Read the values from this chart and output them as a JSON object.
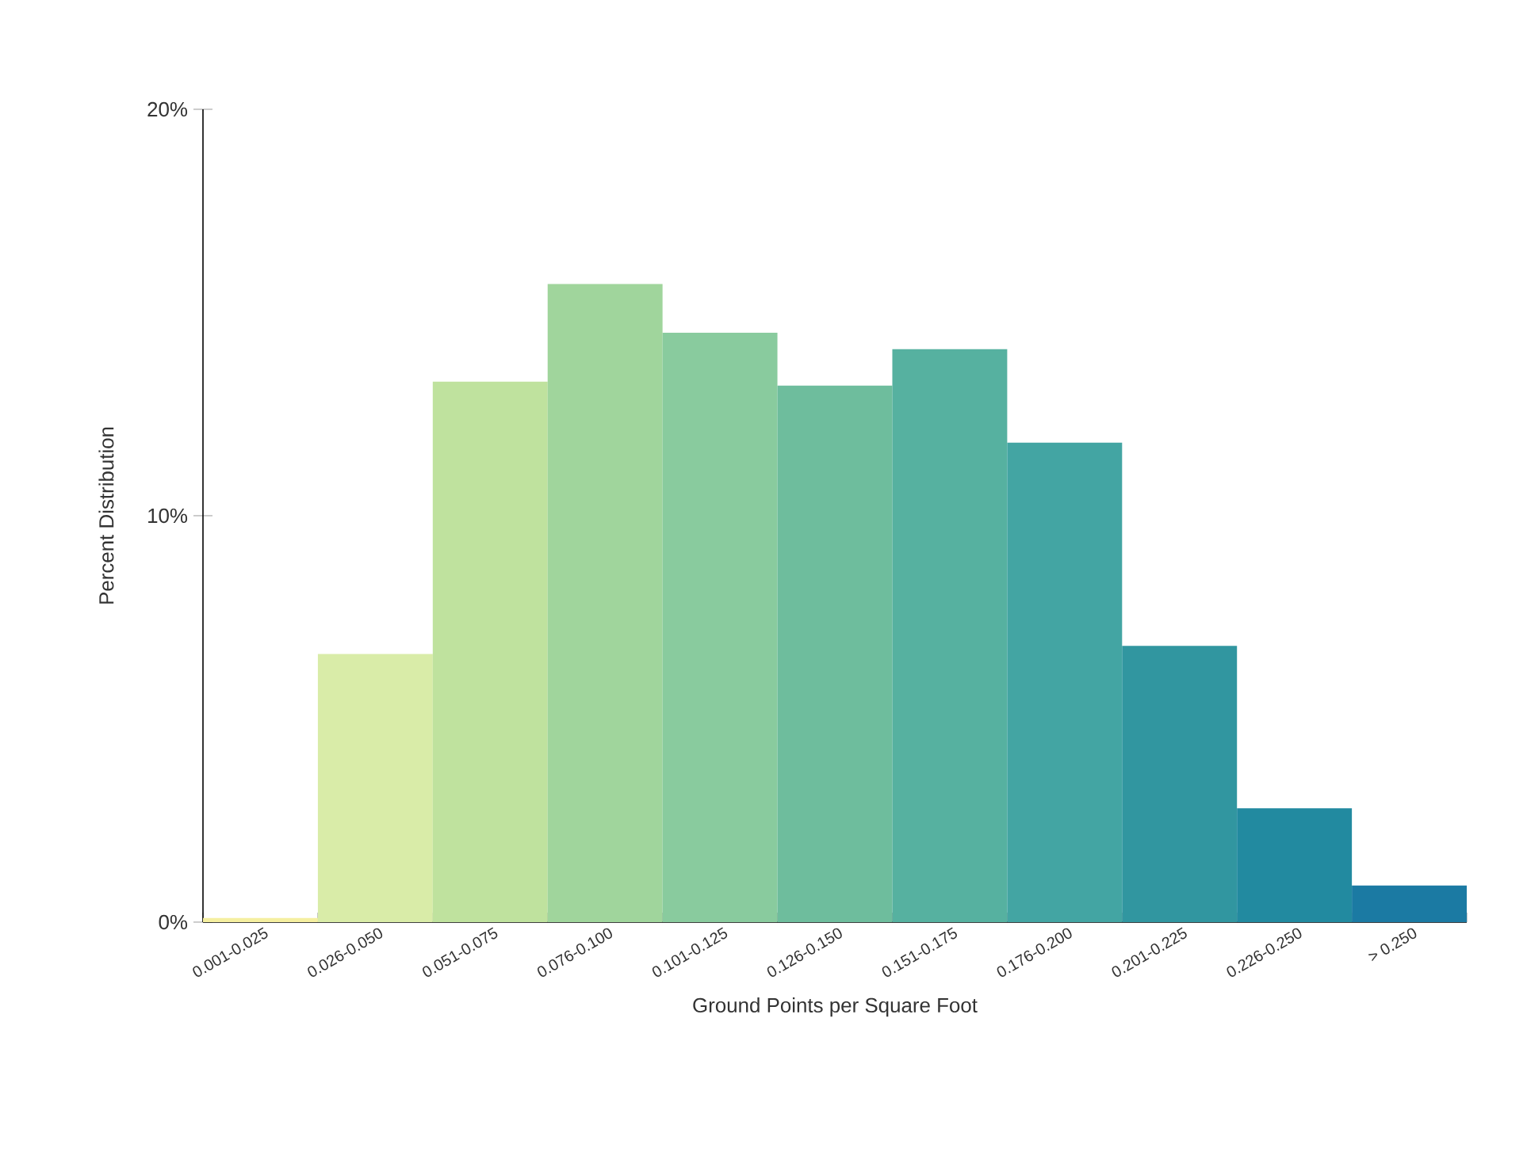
{
  "chart_data": {
    "type": "bar",
    "xlabel": "Ground Points per Square Foot",
    "ylabel": "Percent Distribution",
    "categories": [
      "0.001-0.025",
      "0.026-0.050",
      "0.051-0.075",
      "0.076-0.100",
      "0.101-0.125",
      "0.126-0.150",
      "0.151-0.175",
      "0.176-0.200",
      "0.201-0.225",
      "0.226-0.250",
      "> 0.250"
    ],
    "values": [
      0.1,
      6.6,
      13.3,
      15.7,
      14.5,
      13.2,
      14.1,
      11.8,
      6.8,
      2.8,
      0.9
    ],
    "colors": [
      "#f5efa0",
      "#d9eca8",
      "#bfe29e",
      "#a0d59c",
      "#89cb9e",
      "#6ebd9d",
      "#56b1a0",
      "#43a5a3",
      "#3196a0",
      "#228aa0",
      "#1b7aa3"
    ],
    "ylim": [
      0,
      20
    ],
    "yticks": [
      {
        "value": 0,
        "label": "0%"
      },
      {
        "value": 10,
        "label": "10%"
      },
      {
        "value": 20,
        "label": "20%"
      }
    ],
    "grid": false
  }
}
